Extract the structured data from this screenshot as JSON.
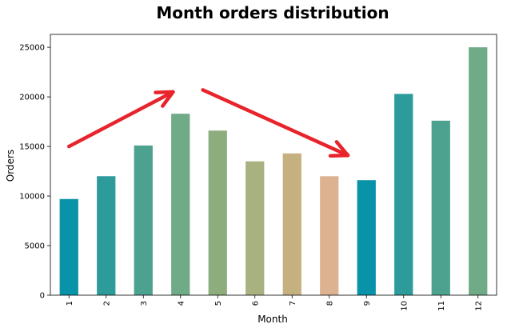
{
  "chart_data": {
    "type": "bar",
    "title": "Month orders distribution",
    "xlabel": "Month",
    "ylabel": "Orders",
    "categories": [
      "1",
      "2",
      "3",
      "4",
      "5",
      "6",
      "7",
      "8",
      "9",
      "10",
      "11",
      "12"
    ],
    "values": [
      9700,
      12000,
      15100,
      18300,
      16600,
      13500,
      14300,
      12000,
      11600,
      20300,
      17600,
      25000
    ],
    "ylim": [
      0,
      26300
    ],
    "yticks": [
      0,
      5000,
      10000,
      15000,
      20000,
      25000
    ],
    "bar_colors": [
      "#0993a8",
      "#2d9b9a",
      "#4da28f",
      "#6fab86",
      "#8ead7d",
      "#a8b180",
      "#c5b180",
      "#ddb290",
      "#0993a8",
      "#2d9b9a",
      "#4da28f",
      "#6fab86"
    ],
    "grid": false,
    "annotations": [
      {
        "type": "arrow",
        "color": "#e8232b",
        "from": [
          1,
          15000
        ],
        "to": [
          3.8,
          20500
        ]
      },
      {
        "type": "arrow",
        "color": "#e8232b",
        "from": [
          4.6,
          20700
        ],
        "to": [
          8.5,
          14100
        ]
      }
    ]
  }
}
